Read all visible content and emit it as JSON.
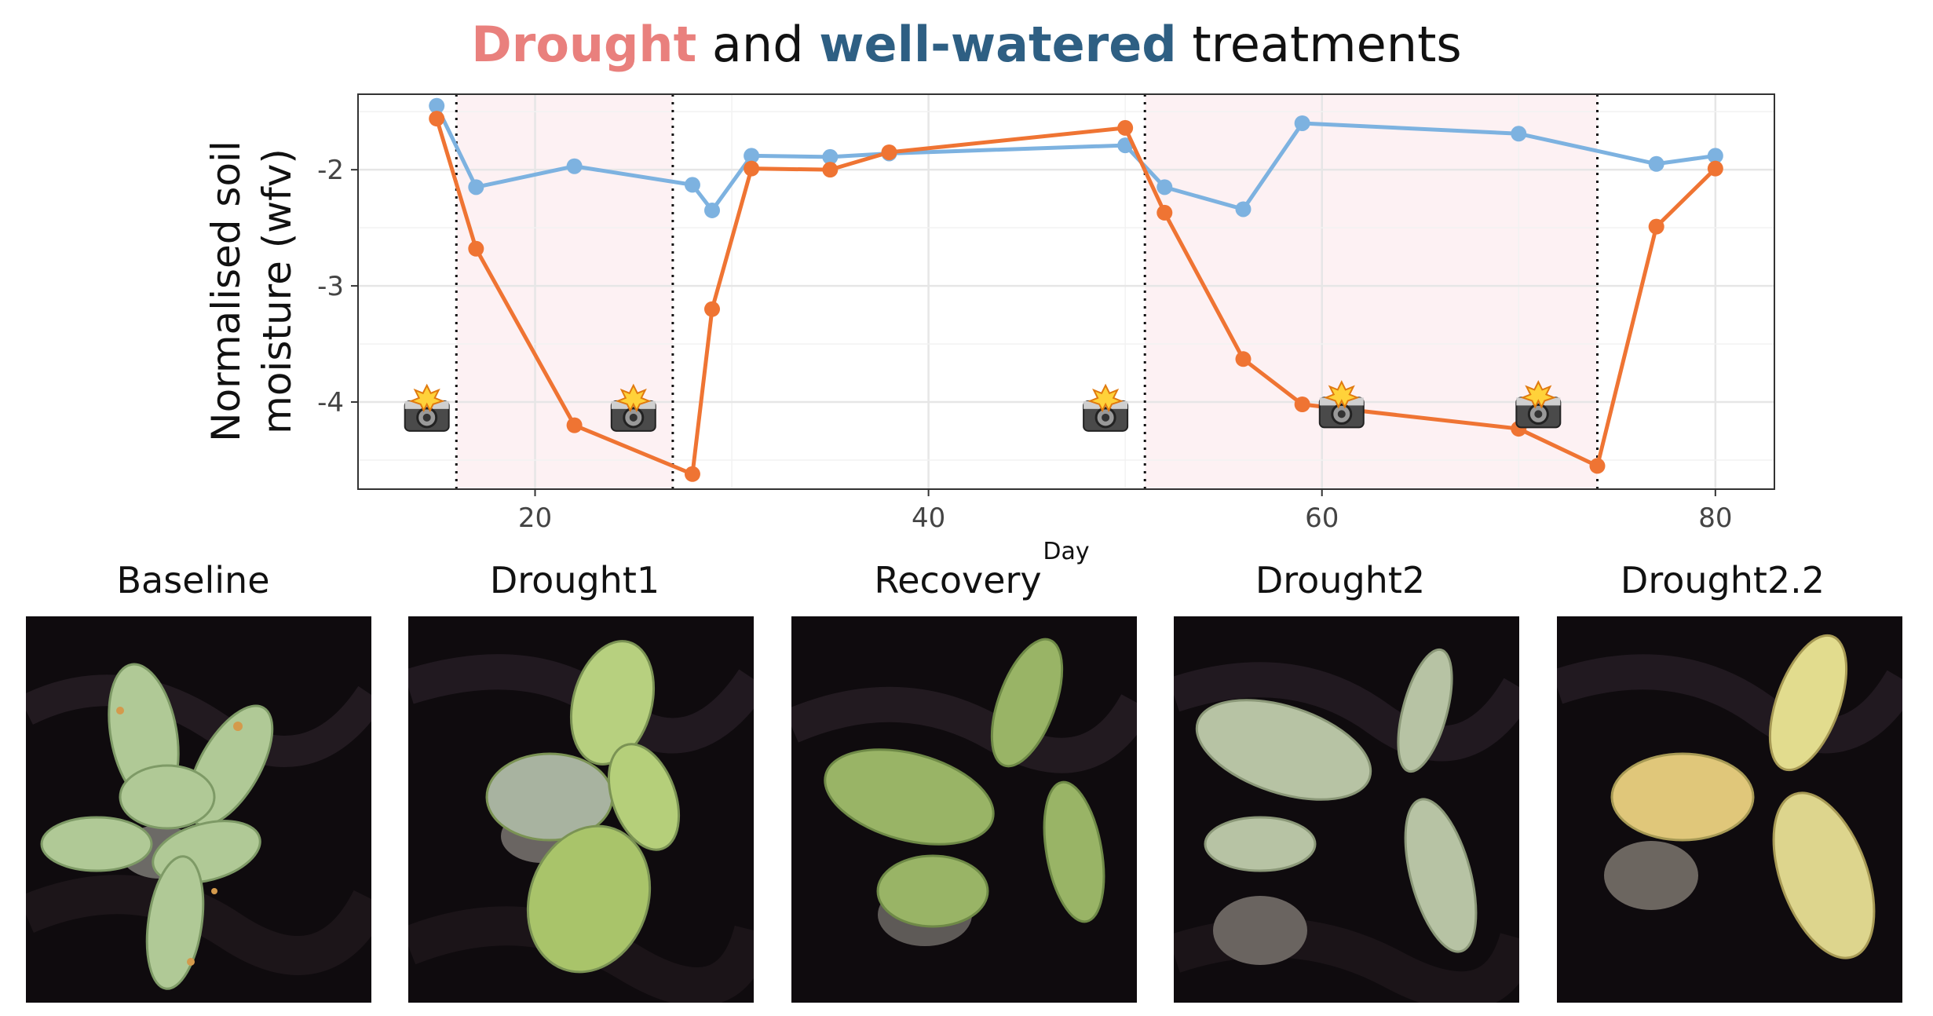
{
  "title": {
    "part1": "Drought",
    "part2": " and ",
    "part3": "well-watered",
    "part4": " treatments"
  },
  "colors": {
    "drought": "#ef7433",
    "watered": "#7db2e0",
    "drought_title": "#e9807d",
    "watered_title": "#2e5f83",
    "shade": "#fdf1f3"
  },
  "chart_data": {
    "type": "line",
    "xlabel": "Day",
    "ylabel": "Normalised soil moisture (wfv)",
    "xlim": [
      11,
      83
    ],
    "ylim": [
      -4.75,
      -1.35
    ],
    "xticks": [
      20,
      40,
      60,
      80
    ],
    "yticks": [
      -2,
      -3,
      -4
    ],
    "ytick_labels": [
      "-2",
      "-3",
      "-4"
    ],
    "grid": true,
    "shaded_periods": [
      [
        16,
        27
      ],
      [
        51,
        74
      ]
    ],
    "event_lines": [
      16,
      27,
      51,
      74
    ],
    "photo_events": [
      {
        "day": 14.5,
        "value": -4.1,
        "icon": "camera-flash-icon"
      },
      {
        "day": 25,
        "value": -4.1,
        "icon": "camera-flash-icon"
      },
      {
        "day": 49,
        "value": -4.1,
        "icon": "camera-flash-icon"
      },
      {
        "day": 61,
        "value": -4.07,
        "icon": "camera-flash-icon"
      },
      {
        "day": 71,
        "value": -4.07,
        "icon": "camera-flash-icon"
      }
    ],
    "series": [
      {
        "name": "well-watered",
        "color": "#7db2e0",
        "x": [
          15,
          17,
          22,
          28,
          29,
          31,
          35,
          38,
          50,
          52,
          56,
          59,
          70,
          77,
          80
        ],
        "y": [
          -1.45,
          -2.15,
          -1.97,
          -2.13,
          -2.35,
          -1.88,
          -1.89,
          -1.86,
          -1.79,
          -2.15,
          -2.34,
          -1.6,
          -1.69,
          -1.95,
          -1.88
        ]
      },
      {
        "name": "drought",
        "color": "#ef7433",
        "x": [
          15,
          17,
          22,
          28,
          29,
          31,
          35,
          38,
          50,
          52,
          56,
          59,
          70,
          74,
          77,
          80
        ],
        "y": [
          -1.56,
          -2.68,
          -4.2,
          -4.62,
          -3.2,
          -1.99,
          -2.0,
          -1.85,
          -1.64,
          -2.37,
          -3.63,
          -4.02,
          -4.23,
          -4.55,
          -2.49,
          -1.99
        ]
      }
    ]
  },
  "photos": [
    {
      "label": "Baseline"
    },
    {
      "label": "Drought1"
    },
    {
      "label": "Recovery"
    },
    {
      "label": "Drought2"
    },
    {
      "label": "Drought2.2"
    }
  ]
}
